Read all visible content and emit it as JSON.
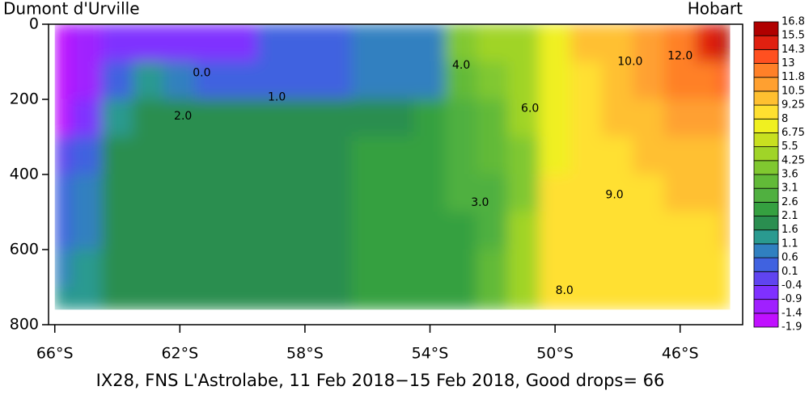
{
  "chart_data": {
    "type": "section",
    "title": "IX28, FNS L'Astrolabe, 11 Feb 2018−15 Feb 2018, Good drops= 66",
    "left_label": "Dumont d'Urville",
    "right_label": "Hobart",
    "xlim": [
      -66.2,
      -44
    ],
    "xticks": [
      {
        "value": -66,
        "label": "66°S"
      },
      {
        "value": -62,
        "label": "62°S"
      },
      {
        "value": -58,
        "label": "58°S"
      },
      {
        "value": -54,
        "label": "54°S"
      },
      {
        "value": -50,
        "label": "50°S"
      },
      {
        "value": -46,
        "label": "46°S"
      }
    ],
    "ylim": [
      0,
      800
    ],
    "yticks": [
      0,
      200,
      400,
      600,
      800
    ],
    "x": [
      -66,
      -65,
      -64,
      -63,
      -62,
      -61,
      -60,
      -59,
      -58,
      -57,
      -56,
      -55,
      -54,
      -53,
      -52,
      -51,
      -50,
      -49,
      -48,
      -47,
      -46,
      -45,
      -44.4
    ],
    "depth_bins": [
      0,
      100,
      200,
      300,
      400,
      500,
      600,
      700,
      760
    ],
    "z": [
      [
        -1.5,
        -1.9,
        -1.5,
        0,
        0.5,
        0.5,
        1.0,
        1.5
      ],
      [
        -1,
        -1.2,
        -0.5,
        0.5,
        1,
        1,
        1.2,
        1.5
      ],
      [
        -0.5,
        0.5,
        1.5,
        1.8,
        1.8,
        1.8,
        1.8,
        1.8
      ],
      [
        -0.5,
        1.5,
        1.8,
        2.0,
        1.9,
        1.9,
        1.9,
        1.9
      ],
      [
        -0.5,
        0.8,
        1.8,
        2.0,
        2.0,
        1.9,
        1.9,
        1.9
      ],
      [
        -0.8,
        0.6,
        1.8,
        2.0,
        2.0,
        2.0,
        2.0,
        2.0
      ],
      [
        -0.5,
        0.6,
        1.8,
        2.1,
        2.1,
        2.1,
        2.1,
        2.1
      ],
      [
        0.3,
        0.6,
        1.8,
        2.1,
        2.1,
        2.1,
        2.1,
        2.1
      ],
      [
        0.5,
        0.4,
        1.8,
        2.1,
        2.1,
        2.1,
        2.1,
        2.1
      ],
      [
        0.6,
        0.6,
        1.9,
        2.1,
        2.1,
        2.1,
        2.1,
        2.1
      ],
      [
        0.7,
        0.8,
        2.0,
        2.2,
        2.2,
        2.2,
        2.2,
        2.2
      ],
      [
        0.8,
        0.9,
        2.1,
        2.3,
        2.3,
        2.3,
        2.3,
        2.3
      ],
      [
        1.0,
        1.0,
        2.3,
        2.4,
        2.4,
        2.4,
        2.4,
        2.4
      ],
      [
        4.0,
        3.5,
        3.0,
        2.9,
        2.8,
        2.6,
        2.5,
        2.5
      ],
      [
        4.5,
        4.0,
        3.5,
        3.2,
        3.0,
        3.0,
        3.2,
        3.3
      ],
      [
        5.0,
        4.6,
        4.3,
        4.2,
        4.2,
        4.4,
        4.6,
        4.8
      ],
      [
        7.5,
        7.0,
        7.5,
        8.0,
        8.5,
        8.5,
        8.2,
        8.2
      ],
      [
        9.5,
        9.2,
        9.0,
        8.9,
        8.8,
        8.5,
        8.3,
        8.2
      ],
      [
        10.5,
        10.0,
        9.5,
        9.2,
        9.0,
        8.8,
        8.5,
        8.3
      ],
      [
        11.5,
        11.0,
        10.3,
        9.5,
        9.2,
        8.9,
        8.6,
        8.4
      ],
      [
        12.5,
        12.0,
        11.0,
        10.0,
        9.5,
        9.0,
        8.7,
        8.5
      ],
      [
        14.5,
        12.8,
        11.5,
        10.3,
        9.6,
        9.2,
        8.8,
        8.5
      ],
      [
        16.5,
        13.5,
        11.8,
        10.5,
        9.8,
        9.3,
        8.9,
        8.6
      ]
    ],
    "colorbar": {
      "levels": [
        -1.9,
        -1.4,
        -0.9,
        -0.4,
        0.1,
        0.6,
        1.1,
        1.6,
        2.1,
        2.6,
        3.1,
        3.6,
        4.25,
        5.5,
        6.75,
        8,
        9.25,
        10.5,
        11.8,
        13,
        14.3,
        15.5,
        16.8
      ],
      "colors": [
        "#c010ff",
        "#a020ff",
        "#7f30ff",
        "#6044f0",
        "#4062e0",
        "#3080c0",
        "#2a9a90",
        "#2a8e50",
        "#35a040",
        "#50b040",
        "#62ba38",
        "#80c830",
        "#a0d428",
        "#c8e020",
        "#f0f020",
        "#ffe030",
        "#ffc030",
        "#ffa030",
        "#ff8028",
        "#ff5020",
        "#e02010",
        "#b00000"
      ]
    },
    "contour_labels": [
      {
        "value": 0,
        "label": "0.0",
        "x": -61.3,
        "depth": 130
      },
      {
        "value": 1,
        "label": "1.0",
        "x": -58.9,
        "depth": 195
      },
      {
        "value": 2,
        "label": "2.0",
        "x": -61.9,
        "depth": 245
      },
      {
        "value": 3,
        "label": "3.0",
        "x": -52.4,
        "depth": 475
      },
      {
        "value": 4,
        "label": "4.0",
        "x": -53.0,
        "depth": 110
      },
      {
        "value": 6,
        "label": "6.0",
        "x": -50.8,
        "depth": 225
      },
      {
        "value": 8,
        "label": "8.0",
        "x": -49.7,
        "depth": 710
      },
      {
        "value": 9,
        "label": "9.0",
        "x": -48.1,
        "depth": 455
      },
      {
        "value": 10,
        "label": "10.0",
        "x": -47.6,
        "depth": 100
      },
      {
        "value": 12,
        "label": "12.0",
        "x": -46.0,
        "depth": 85
      }
    ]
  }
}
